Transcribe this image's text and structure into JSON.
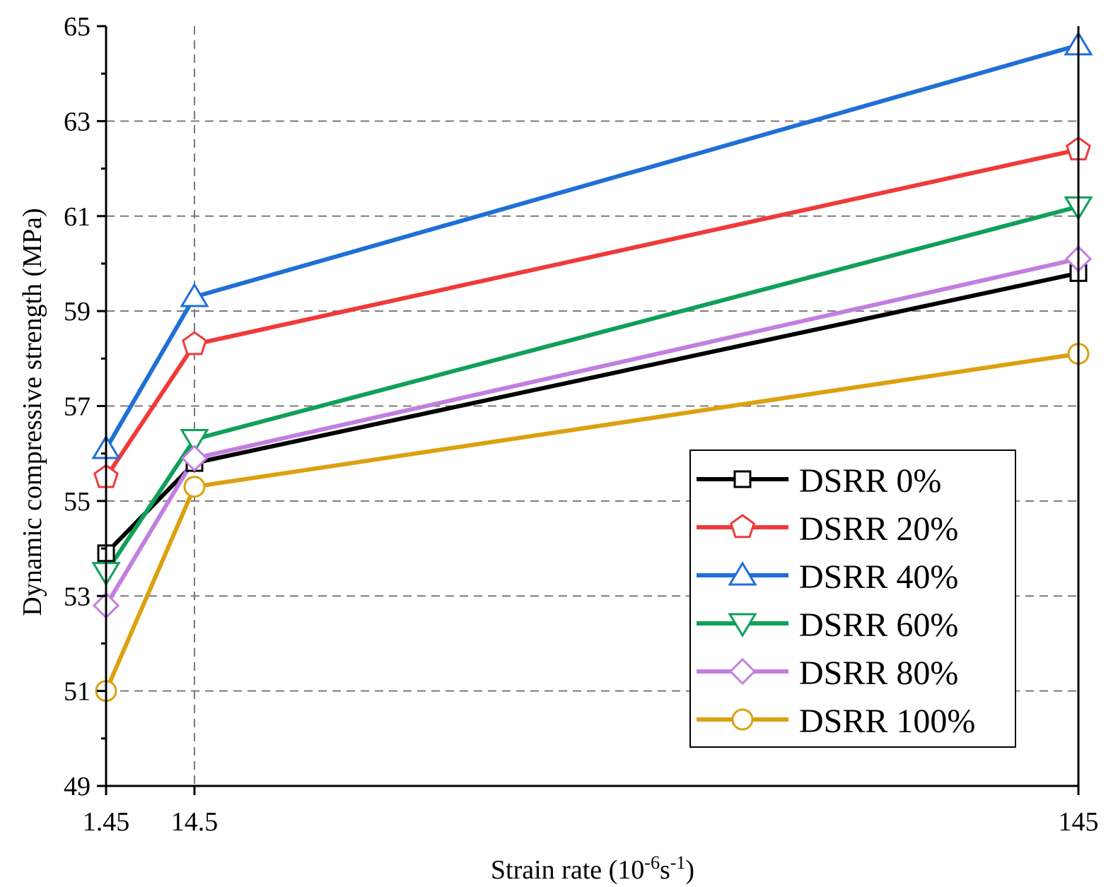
{
  "chart_data": {
    "type": "line",
    "title": "",
    "xlabel": "Strain rate (10",
    "xlabel_exp1": "-6",
    "xlabel_mid": "s",
    "xlabel_exp2": "-1",
    "xlabel_end": ")",
    "ylabel": "Dynamic compressive strength (MPa)",
    "categories": [
      "1.45",
      "14.5",
      "145"
    ],
    "ylim": [
      49,
      65
    ],
    "yticks": [
      "49",
      "51",
      "53",
      "55",
      "57",
      "59",
      "61",
      "63",
      "65"
    ],
    "grid": "dashed at y = 51–63 and at x = 14.5",
    "legend_position": "lower-right",
    "series": [
      {
        "name": "DSRR 0%",
        "marker": "square",
        "color": "#000000",
        "values": [
          53.9,
          55.8,
          59.8
        ]
      },
      {
        "name": "DSRR 20%",
        "marker": "pentagon",
        "color": "#f03a3a",
        "values": [
          55.5,
          58.3,
          62.4
        ]
      },
      {
        "name": "DSRR 40%",
        "marker": "triangle-up",
        "color": "#1f6fd6",
        "values": [
          56.1,
          59.3,
          64.6
        ]
      },
      {
        "name": "DSRR 60%",
        "marker": "triangle-down",
        "color": "#0fa05a",
        "values": [
          53.5,
          56.3,
          61.2
        ]
      },
      {
        "name": "DSRR 80%",
        "marker": "diamond",
        "color": "#c27ee0",
        "values": [
          52.8,
          55.9,
          60.1
        ]
      },
      {
        "name": "DSRR 100%",
        "marker": "circle",
        "color": "#dba10f",
        "values": [
          51.0,
          55.3,
          58.1
        ]
      }
    ]
  }
}
